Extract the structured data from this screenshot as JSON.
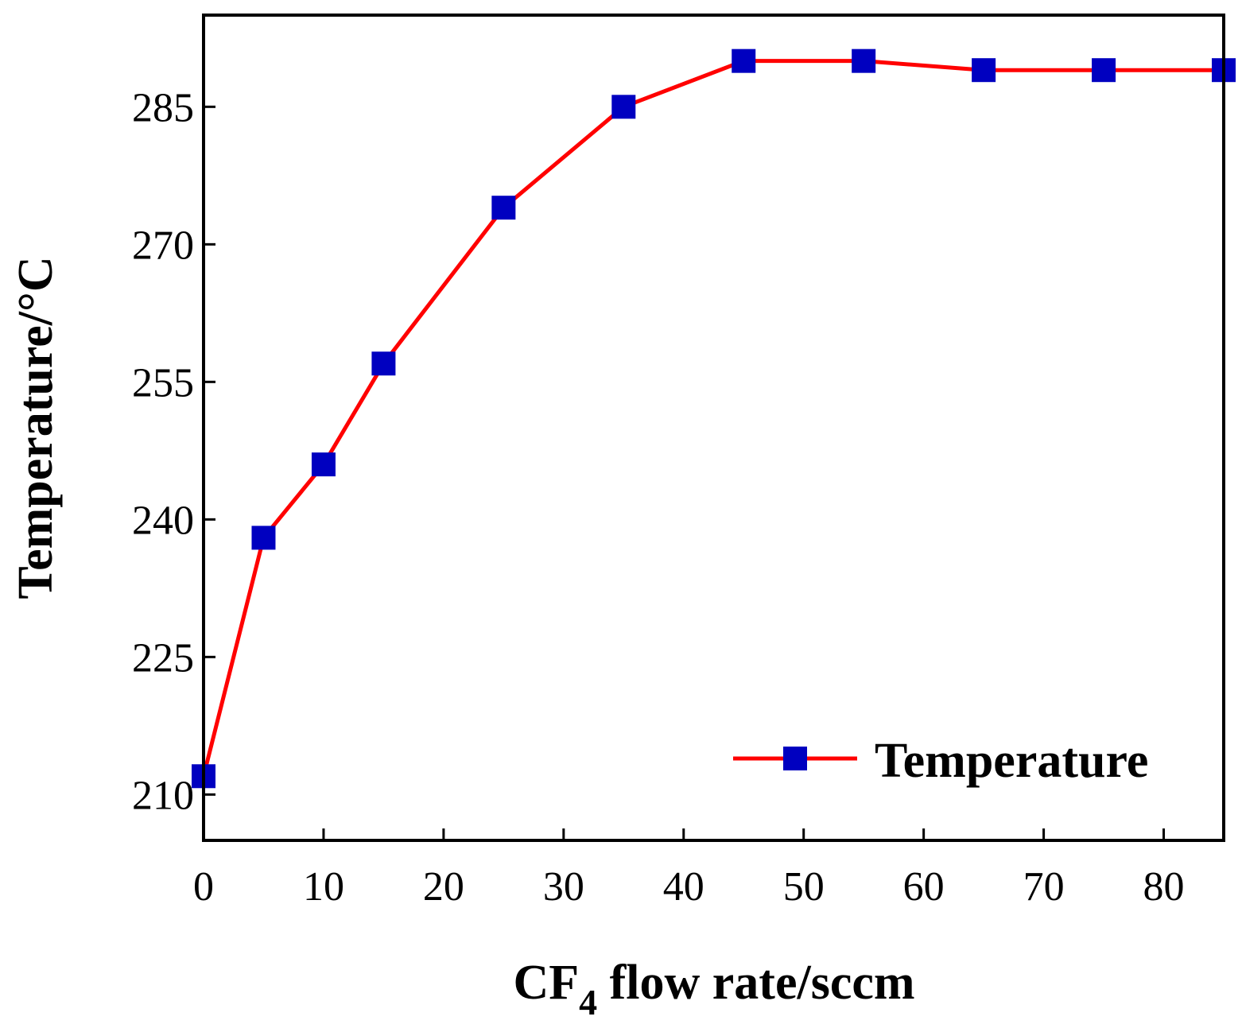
{
  "chart_data": {
    "type": "line",
    "title": "",
    "xlabel": {
      "prefix": "CF",
      "subscript": "4",
      "suffix": " flow rate/sccm"
    },
    "ylabel": "Temperature/°C",
    "xlim": [
      0,
      85
    ],
    "ylim": [
      205,
      295
    ],
    "xticks": [
      0,
      10,
      20,
      30,
      40,
      50,
      60,
      70,
      80
    ],
    "yticks": [
      210,
      225,
      240,
      255,
      270,
      285
    ],
    "grid": false,
    "legend_position": "bottom-right",
    "series": [
      {
        "name": "Temperature",
        "line_color": "#ff0000",
        "marker_color": "#0000c0",
        "marker": "square",
        "x": [
          0,
          5,
          10,
          15,
          25,
          35,
          45,
          55,
          65,
          75,
          85
        ],
        "y": [
          212,
          238,
          246,
          257,
          274,
          285,
          290,
          290,
          289,
          289,
          289
        ]
      }
    ]
  }
}
